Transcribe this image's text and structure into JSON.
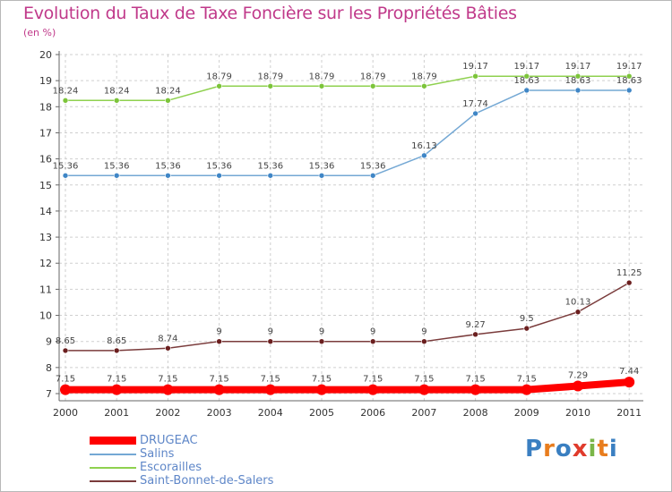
{
  "chart_data": {
    "type": "line",
    "title": "Evolution du Taux de Taxe Foncière sur les Propriétés Bâties",
    "ylabel": "(en %)",
    "xlabel": "",
    "ylim": [
      7,
      20
    ],
    "yticks": [
      "7",
      "8",
      "9",
      "10",
      "11",
      "12",
      "13",
      "14",
      "15",
      "16",
      "17",
      "18",
      "19",
      "20"
    ],
    "categories": [
      "2000",
      "2001",
      "2002",
      "2003",
      "2004",
      "2005",
      "2006",
      "2007",
      "2008",
      "2009",
      "2010",
      "2011"
    ],
    "series": [
      {
        "name": "Escorailles",
        "color": "#8fd14f",
        "point_color": "#7cc43a",
        "values": [
          18.24,
          18.24,
          18.24,
          18.79,
          18.79,
          18.79,
          18.79,
          18.79,
          19.17,
          19.17,
          19.17,
          19.17
        ],
        "labels": [
          "18.24",
          "18.24",
          "18.24",
          "18.79",
          "18.79",
          "18.79",
          "18.79",
          "18.79",
          "19.17",
          "19.17",
          "19.17",
          "19.17"
        ]
      },
      {
        "name": "Salins",
        "color": "#74a8d4",
        "point_color": "#3f86c6",
        "values": [
          15.36,
          15.36,
          15.36,
          15.36,
          15.36,
          15.36,
          15.36,
          16.13,
          17.74,
          18.63,
          18.63,
          18.63
        ],
        "labels": [
          "15.36",
          "15.36",
          "15.36",
          "15.36",
          "15.36",
          "15.36",
          "15.36",
          "16.13",
          "17.74",
          "18.63",
          "18.63",
          "18.63"
        ]
      },
      {
        "name": "Saint-Bonnet-de-Salers",
        "color": "#7a3b3b",
        "point_color": "#6b1f1f",
        "values": [
          8.65,
          8.65,
          8.74,
          9,
          9,
          9,
          9,
          9,
          9.27,
          9.5,
          10.13,
          11.25
        ],
        "labels": [
          "8.65",
          "8.65",
          "8.74",
          "9",
          "9",
          "9",
          "9",
          "9",
          "9.27",
          "9.5",
          "10.13",
          "11.25"
        ]
      },
      {
        "name": "DRUGEAC",
        "color": "#ff0000",
        "point_color": "#ff0000",
        "values": [
          7.15,
          7.15,
          7.15,
          7.15,
          7.15,
          7.15,
          7.15,
          7.15,
          7.15,
          7.15,
          7.29,
          7.44
        ],
        "labels": [
          "7.15",
          "7.15",
          "7.15",
          "7.15",
          "7.15",
          "7.15",
          "7.15",
          "7.15",
          "7.15",
          "7.15",
          "7.29",
          "7.44"
        ]
      }
    ],
    "legend": [
      {
        "name": "DRUGEAC",
        "color": "#ff0000"
      },
      {
        "name": "Salins",
        "color": "#74a8d4"
      },
      {
        "name": "Escorailles",
        "color": "#8fd14f"
      },
      {
        "name": "Saint-Bonnet-de-Salers",
        "color": "#7a3b3b"
      }
    ]
  },
  "logo": {
    "letters": [
      "P",
      "r",
      "o",
      "x",
      "i",
      "t",
      "i"
    ],
    "colors": [
      "#3a7fc1",
      "#e87d1e",
      "#3a7fc1",
      "#e03b2c",
      "#7ab648",
      "#e87d1e",
      "#3a7fc1"
    ]
  }
}
